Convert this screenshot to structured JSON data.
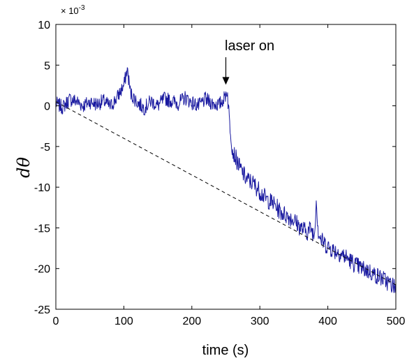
{
  "chart_data": {
    "type": "line",
    "xlabel": "time (s)",
    "ylabel": "dθ",
    "y_multiplier": {
      "base": "× 10",
      "exponent": "-3"
    },
    "xlim": [
      0,
      500
    ],
    "ylim": [
      -25,
      10
    ],
    "x_ticks": [
      "0",
      "100",
      "200",
      "300",
      "400",
      "500"
    ],
    "y_ticks": [
      "10",
      "5",
      "0",
      "-5",
      "-10",
      "-15",
      "-20",
      "-25"
    ],
    "grid": false,
    "colors": {
      "signal": "#1a1aa0",
      "trend": "#000000"
    },
    "annotation": {
      "text": "laser on",
      "x": 250,
      "y": 2.5
    },
    "series": [
      {
        "style": "solid",
        "x": [
          0,
          10,
          20,
          30,
          40,
          50,
          60,
          70,
          80,
          90,
          100,
          105,
          110,
          120,
          130,
          140,
          150,
          160,
          170,
          180,
          190,
          200,
          210,
          220,
          230,
          240,
          248,
          252,
          255,
          260,
          265,
          270,
          280,
          290,
          300,
          310,
          320,
          330,
          340,
          350,
          360,
          370,
          375,
          380,
          383,
          386,
          390,
          400,
          410,
          420,
          430,
          440,
          450,
          460,
          470,
          480,
          490,
          500
        ],
        "y": [
          0.3,
          -0.2,
          0.8,
          0.6,
          0.0,
          0.5,
          0.2,
          0.6,
          -0.1,
          1.0,
          2.5,
          4.5,
          1.5,
          0.4,
          -0.3,
          0.6,
          0.0,
          0.9,
          0.6,
          0.3,
          1.0,
          0.4,
          0.0,
          0.8,
          0.3,
          0.1,
          1.0,
          2.0,
          -1.5,
          -5.5,
          -6.5,
          -7.5,
          -9.0,
          -9.5,
          -10.5,
          -11.5,
          -12.0,
          -13.0,
          -13.5,
          -14.0,
          -15.0,
          -15.5,
          -15.0,
          -16.0,
          -11.5,
          -15.5,
          -16.5,
          -17.3,
          -17.8,
          -18.2,
          -18.8,
          -19.5,
          -20.0,
          -20.3,
          -20.8,
          -21.2,
          -21.8,
          -22.3
        ]
      },
      {
        "style": "dashed",
        "x": [
          0,
          500
        ],
        "y": [
          0.5,
          -22
        ]
      }
    ]
  }
}
